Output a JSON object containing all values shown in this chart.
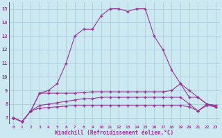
{
  "xlabel": "Windchill (Refroidissement éolien,°C)",
  "background_color": "#cce8f0",
  "grid_color": "#aaccdd",
  "line_color": "#993399",
  "xlim_min": -0.5,
  "xlim_max": 23.5,
  "ylim_min": 6.5,
  "ylim_max": 15.5,
  "xticks": [
    0,
    1,
    2,
    3,
    4,
    5,
    6,
    7,
    8,
    9,
    10,
    11,
    12,
    13,
    14,
    15,
    16,
    17,
    18,
    19,
    20,
    21,
    22,
    23
  ],
  "yticks": [
    7,
    8,
    9,
    10,
    11,
    12,
    13,
    14,
    15
  ],
  "s1": [
    7.0,
    6.7,
    7.5,
    8.8,
    9.0,
    9.5,
    11.0,
    13.0,
    13.5,
    13.5,
    14.5,
    15.0,
    15.0,
    14.8,
    15.0,
    15.0,
    13.0,
    12.0,
    10.5,
    9.5,
    9.0,
    8.5,
    8.0,
    7.8
  ],
  "s2": [
    7.0,
    6.7,
    7.5,
    8.8,
    8.8,
    8.8,
    8.8,
    8.8,
    8.85,
    8.9,
    8.9,
    8.9,
    8.9,
    8.9,
    8.9,
    8.9,
    8.9,
    8.9,
    9.0,
    9.5,
    8.5,
    8.5,
    8.0,
    7.9
  ],
  "s3": [
    7.0,
    6.7,
    7.5,
    7.9,
    8.0,
    8.1,
    8.2,
    8.3,
    8.4,
    8.4,
    8.5,
    8.5,
    8.5,
    8.5,
    8.5,
    8.5,
    8.5,
    8.5,
    8.5,
    8.5,
    8.0,
    7.5,
    8.0,
    7.9
  ],
  "s4": [
    7.0,
    6.7,
    7.5,
    7.7,
    7.75,
    7.8,
    7.85,
    7.9,
    7.9,
    7.9,
    7.9,
    7.9,
    7.9,
    7.9,
    7.9,
    7.9,
    7.9,
    7.9,
    7.9,
    7.9,
    7.8,
    7.5,
    7.9,
    7.8
  ]
}
